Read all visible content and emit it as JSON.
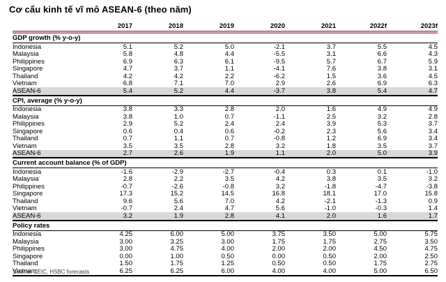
{
  "colors": {
    "header_rule_dark": "#8e5063",
    "header_rule_fill": "#d9aeb9",
    "highlight_row_bg": "#d9d9d9",
    "section_rule": "#000000",
    "text": "#000000"
  },
  "chart_data": {
    "type": "table",
    "title": "Cơ cấu kinh tế vĩ mô ASEAN-6 (theo năm)",
    "source": "Source: CEIC, HSBC forecasts",
    "columns": [
      "2017",
      "2018",
      "2019",
      "2020",
      "2021",
      "2022f",
      "2023f"
    ],
    "sections": [
      {
        "label": "GDP growth (% y-o-y)",
        "rows": [
          {
            "label": "Indonesia",
            "highlight": false,
            "values": [
              "5.1",
              "5.2",
              "5.0",
              "-2.1",
              "3.7",
              "5.5",
              "4.5"
            ]
          },
          {
            "label": "Malaysia",
            "highlight": false,
            "values": [
              "5.8",
              "4.8",
              "4.4",
              "-5.5",
              "3.1",
              "6.6",
              "4.3"
            ]
          },
          {
            "label": "Philippines",
            "highlight": false,
            "values": [
              "6.9",
              "6.3",
              "6.1",
              "-9.5",
              "5.7",
              "6.7",
              "5.9"
            ]
          },
          {
            "label": "Singapore",
            "highlight": false,
            "values": [
              "4.7",
              "3.7",
              "1.1",
              "-4.1",
              "7.6",
              "3.8",
              "3.1"
            ]
          },
          {
            "label": "Thailand",
            "highlight": false,
            "values": [
              "4.2",
              "4.2",
              "2.2",
              "-6.2",
              "1.5",
              "3.6",
              "4.5"
            ]
          },
          {
            "label": "Vietnam",
            "highlight": false,
            "values": [
              "6.8",
              "7.1",
              "7.0",
              "2.9",
              "2.6",
              "6.9",
              "6.3"
            ]
          },
          {
            "label": "ASEAN-6",
            "highlight": true,
            "values": [
              "5.4",
              "5.2",
              "4.4",
              "-3.7",
              "3.8",
              "5.4",
              "4.7"
            ]
          }
        ]
      },
      {
        "label": "CPI, average (% y-o-y)",
        "rows": [
          {
            "label": "Indonesia",
            "highlight": false,
            "values": [
              "3.8",
              "3.3",
              "2.8",
              "2.0",
              "1.6",
              "4.9",
              "4.9"
            ]
          },
          {
            "label": "Malaysia",
            "highlight": false,
            "values": [
              "3.8",
              "1.0",
              "0.7",
              "-1.1",
              "2.5",
              "3.2",
              "2.8"
            ]
          },
          {
            "label": "Philippines",
            "highlight": false,
            "values": [
              "2.9",
              "5.2",
              "2.4",
              "2.4",
              "3.9",
              "5.3",
              "3.7"
            ]
          },
          {
            "label": "Singapore",
            "highlight": false,
            "values": [
              "0.6",
              "0.4",
              "0.6",
              "-0.2",
              "2.3",
              "5.6",
              "3.4"
            ]
          },
          {
            "label": "Thailand",
            "highlight": false,
            "values": [
              "0.7",
              "1.1",
              "0.7",
              "-0.8",
              "1.2",
              "6.9",
              "3.4"
            ]
          },
          {
            "label": "Vietnam",
            "highlight": false,
            "values": [
              "3.5",
              "3.5",
              "2.8",
              "3.2",
              "1.8",
              "3.5",
              "3.7"
            ]
          },
          {
            "label": "ASEAN-6",
            "highlight": true,
            "values": [
              "2.7",
              "2.6",
              "1.9",
              "1.1",
              "2.0",
              "5.0",
              "3.9"
            ]
          }
        ]
      },
      {
        "label": "Current account balance (% of GDP)",
        "rows": [
          {
            "label": "Indonesia",
            "highlight": false,
            "values": [
              "-1.6",
              "-2.9",
              "-2.7",
              "-0.4",
              "0.3",
              "0.1",
              "-1.0"
            ]
          },
          {
            "label": "Malaysia",
            "highlight": false,
            "values": [
              "2.8",
              "2.2",
              "3.5",
              "4.2",
              "3.8",
              "3.5",
              "3.2"
            ]
          },
          {
            "label": "Philippines",
            "highlight": false,
            "values": [
              "-0.7",
              "-2.6",
              "-0.8",
              "3.2",
              "-1.8",
              "-4.7",
              "-3.8"
            ]
          },
          {
            "label": "Singapore",
            "highlight": false,
            "values": [
              "17.3",
              "15.2",
              "14.5",
              "16.8",
              "18.1",
              "17.0",
              "15.8"
            ]
          },
          {
            "label": "Thailand",
            "highlight": false,
            "values": [
              "9.6",
              "5.6",
              "7.0",
              "4.2",
              "-2.1",
              "-1.3",
              "0.9"
            ]
          },
          {
            "label": "Vietnam",
            "highlight": false,
            "values": [
              "-0.7",
              "2.4",
              "4.7",
              "5.6",
              "-1.0",
              "-0.3",
              "1.4"
            ]
          },
          {
            "label": "ASEAN-6",
            "highlight": true,
            "values": [
              "3.2",
              "1.9",
              "2.8",
              "4.1",
              "2.0",
              "1.6",
              "1.7"
            ]
          }
        ]
      },
      {
        "label": "Policy rates",
        "rows": [
          {
            "label": "Indonesia",
            "highlight": false,
            "values": [
              "4.25",
              "6.00",
              "5.00",
              "3.75",
              "3.50",
              "5.00",
              "5.75"
            ]
          },
          {
            "label": "Malaysia",
            "highlight": false,
            "values": [
              "3.00",
              "3.25",
              "3.00",
              "1.75",
              "1.75",
              "2.75",
              "3.50"
            ]
          },
          {
            "label": "Philippines",
            "highlight": false,
            "values": [
              "3.00",
              "4.75",
              "4.00",
              "2.00",
              "2.00",
              "4.50",
              "4.75"
            ]
          },
          {
            "label": "Singapore",
            "highlight": false,
            "values": [
              "0.00",
              "1.00",
              "0.50",
              "0.00",
              "0.50",
              "2.00",
              "2.50"
            ]
          },
          {
            "label": "Thailand",
            "highlight": false,
            "values": [
              "1.50",
              "1.75",
              "1.25",
              "0.50",
              "0.50",
              "1.75",
              "2.75"
            ]
          },
          {
            "label": "Vietnam",
            "highlight": false,
            "values": [
              "6.25",
              "6.25",
              "6.00",
              "4.00",
              "4.00",
              "5.00",
              "6.50"
            ]
          }
        ]
      }
    ]
  }
}
